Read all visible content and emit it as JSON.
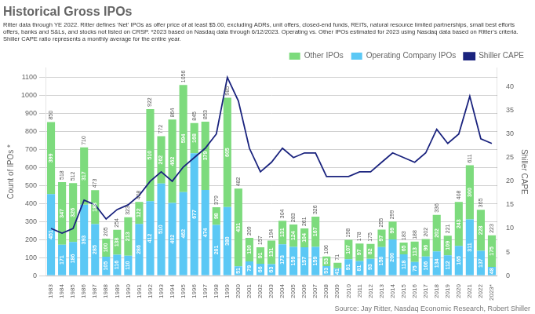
{
  "chart_data": {
    "type": "bar",
    "title": "Historical Gross IPOs",
    "subtitle": [
      "Ritter data through YE 2022. Ritter defines ‘Net’ IPOs as offer price of at least $5.00, excluding ADRs, unit offers, closed-end funds, REITs, natural resource limited partnerships, small best efforts",
      "offers, banks and S&Ls, and stocks not listed on CRSP. *2023 based on Nasdaq data through 6/12/2023. Operating vs. Other IPOs estimated for 2023 using Nasdaq data based on Ritter’s criteria.",
      "Shiller CAPE ratio represents a monthly average for the entire year."
    ],
    "source": "Source: Jay Ritter, Nasdaq Economic Research, Robert Shiller",
    "categories": [
      "1983",
      "1984",
      "1985",
      "1986",
      "1987",
      "1988",
      "1989",
      "1990",
      "1991",
      "1992",
      "1993",
      "1994",
      "1995",
      "1996",
      "1997",
      "1998",
      "1999",
      "2000",
      "2001",
      "2002",
      "2003",
      "2004",
      "2005",
      "2006",
      "2007",
      "2008",
      "2009",
      "2010",
      "2011",
      "2012",
      "2013",
      "2014",
      "2015",
      "2016",
      "2017",
      "2018",
      "2019",
      "2020",
      "2021",
      "2022",
      "2023*"
    ],
    "stacked": true,
    "series": [
      {
        "name": "Operating Company IPOs",
        "type": "bar",
        "color": "#5bc8f5",
        "data_labels": true,
        "values": [
          451,
          171,
          186,
          393,
          285,
          105,
          116,
          110,
          286,
          412,
          510,
          402,
          462,
          677,
          474,
          281,
          380,
          51,
          79,
          66,
          63,
          173,
          159,
          157,
          159,
          53,
          41,
          91,
          81,
          93,
          158,
          200,
          118,
          75,
          106,
          134,
          112,
          165,
          311,
          137,
          48
        ]
      },
      {
        "name": "Other IPOs",
        "type": "bar",
        "color": "#7ddb7d",
        "data_labels": true,
        "values": [
          399,
          347,
          326,
          317,
          188,
          100,
          138,
          213,
          122,
          510,
          262,
          462,
          594,
          168,
          379,
          98,
          605,
          431,
          130,
          91,
          131,
          131,
          124,
          104,
          167,
          53,
          30,
          107,
          97,
          82,
          97,
          99,
          65,
          113,
          96,
          202,
          109,
          243,
          300,
          228,
          175
        ],
        "value_labels": [
          "399",
          "347",
          "326",
          "317",
          "188",
          "100",
          "138",
          "213",
          "122",
          "510",
          "262",
          "462",
          "594",
          "168",
          "379",
          "98",
          "605",
          "431",
          "130",
          "91",
          "131",
          "131",
          "124",
          "104",
          "167",
          "53",
          null,
          "107",
          "97",
          "82",
          "97",
          "99",
          "65",
          "113",
          "96",
          "202",
          "109",
          "243",
          "300",
          "228",
          "175"
        ]
      },
      {
        "name": "Shiller CAPE",
        "type": "line",
        "axis": "y2",
        "color": "#1a237e",
        "marker": "none",
        "line_style": "solid",
        "values": [
          10,
          9,
          10,
          16,
          15,
          12,
          14,
          15,
          17,
          20,
          22,
          20,
          23,
          25,
          27,
          30,
          42,
          37,
          27,
          22,
          24,
          27,
          25,
          26,
          26,
          21,
          21,
          21,
          22,
          22,
          24,
          26,
          25,
          24,
          26,
          31,
          28,
          30,
          38,
          29,
          28
        ]
      }
    ],
    "totals": [
      850,
      518,
      512,
      710,
      473,
      205,
      254,
      323,
      408,
      922,
      772,
      864,
      1056,
      845,
      853,
      379,
      985,
      482,
      209,
      157,
      194,
      304,
      283,
      261,
      326,
      106,
      71,
      198,
      178,
      175,
      255,
      299,
      183,
      188,
      202,
      336,
      221,
      408,
      611,
      365,
      223
    ],
    "ylabel": "Count of IPOs *",
    "y2label": "Shiller CAPE",
    "ylim": [
      0,
      1150
    ],
    "yticks": [
      0,
      100,
      200,
      300,
      400,
      500,
      600,
      700,
      800,
      900,
      1000,
      1100
    ],
    "y2lim": [
      0,
      44
    ],
    "y2ticks": [
      0,
      5,
      10,
      15,
      20,
      25,
      30,
      35,
      40
    ],
    "grid": true,
    "legend": "upper right"
  }
}
